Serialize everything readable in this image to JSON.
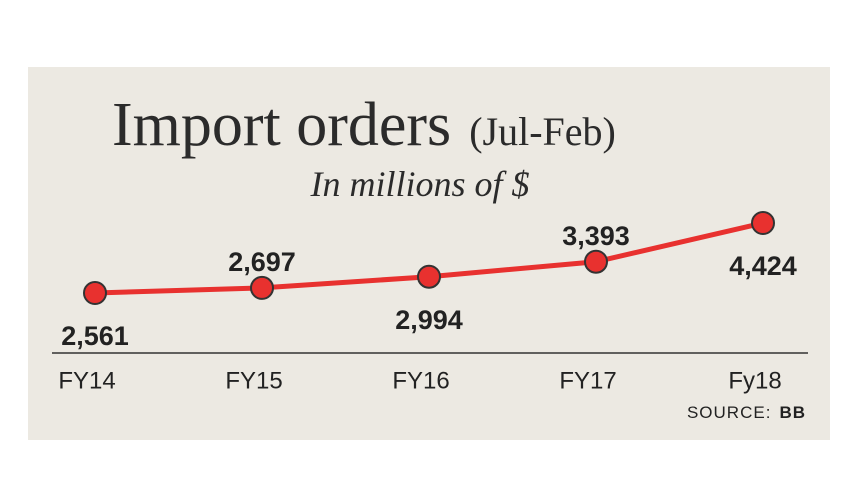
{
  "chart_data": {
    "type": "line",
    "title": "Import orders",
    "title_note": "(Jul-Feb)",
    "subtitle": "In millions of $",
    "categories": [
      "FY14",
      "FY15",
      "FY16",
      "FY17",
      "Fy18"
    ],
    "values": [
      2561,
      2697,
      2994,
      3393,
      4424
    ],
    "value_labels": [
      "2,561",
      "2,697",
      "2,994",
      "3,393",
      "4,424"
    ],
    "color": "#e8312f",
    "source_label": "SOURCE:",
    "source": "BB"
  }
}
